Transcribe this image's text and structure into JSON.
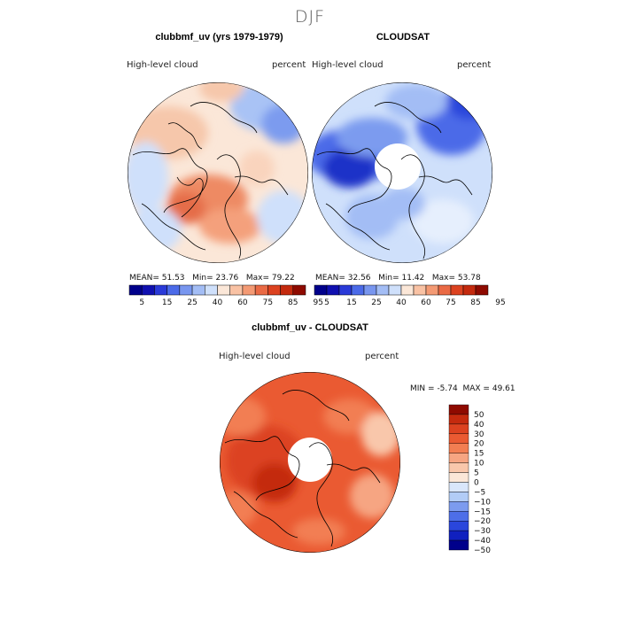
{
  "figure": {
    "season": "DJF"
  },
  "panels": [
    {
      "title": "clubbmf_uv (yrs 1979-1979)",
      "variable": "High-level cloud",
      "units": "percent",
      "stats": {
        "mean_label": "MEAN=",
        "mean": "51.53",
        "min_label": "Min=",
        "min": "23.76",
        "max_label": "Max=",
        "max": "79.22"
      }
    },
    {
      "title": "CLOUDSAT",
      "variable": "High-level cloud",
      "units": "percent",
      "stats": {
        "mean_label": "MEAN=",
        "mean": "32.56",
        "min_label": "Min=",
        "min": "11.42",
        "max_label": "Max=",
        "max": "53.78"
      }
    },
    {
      "title": "clubbmf_uv - CLOUDSAT",
      "variable": "High-level cloud",
      "units": "percent",
      "stats": {
        "min_label": "MIN =",
        "min": "-5.74",
        "max_label": "MAX =",
        "max": "49.61"
      }
    }
  ],
  "colorbar_top": {
    "colors": [
      "#00008b",
      "#1010b0",
      "#2a3ad8",
      "#4b6ae8",
      "#7896ef",
      "#a3bdf5",
      "#cfe0fb",
      "#fbe7d8",
      "#f9c2a4",
      "#f49a74",
      "#ea6a45",
      "#dc4220",
      "#c42a0e",
      "#8e0a00"
    ],
    "tick_labels": [
      "5",
      "15",
      "25",
      "40",
      "60",
      "75",
      "85",
      "95"
    ]
  },
  "colorbar_diff": {
    "colors": [
      "#8e0a00",
      "#c42a0e",
      "#dc4220",
      "#ea5a32",
      "#f27e52",
      "#f6a582",
      "#f9c7ab",
      "#fbe7d8",
      "#d9e6fb",
      "#b2ccf6",
      "#7c9bef",
      "#4d6ee8",
      "#2a46dc",
      "#1020bf",
      "#00008b"
    ],
    "tick_labels": [
      "50",
      "40",
      "30",
      "20",
      "15",
      "10",
      "5",
      "0",
      "−5",
      "−10",
      "−15",
      "−20",
      "−30",
      "−40",
      "−50"
    ]
  },
  "map_colors": {
    "land_line": "#000000",
    "missing": "#ffffff"
  }
}
